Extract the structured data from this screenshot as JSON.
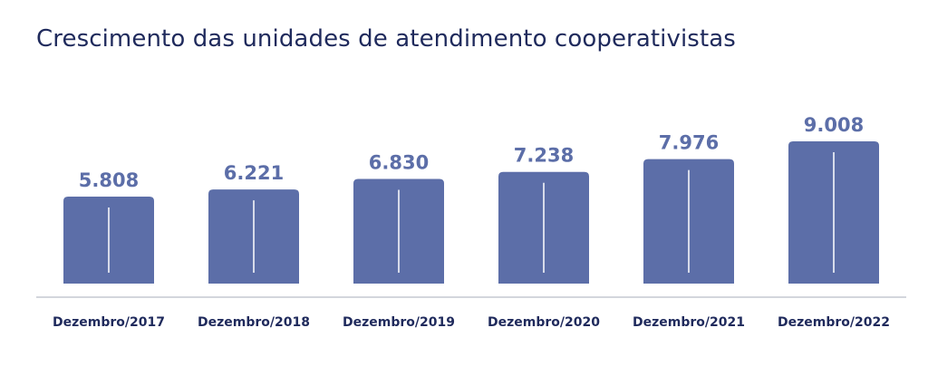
{
  "chart_data": {
    "type": "bar",
    "title": "Crescimento das unidades de atendimento cooperativistas",
    "categories": [
      "Dezembro/2017",
      "Dezembro/2018",
      "Dezembro/2019",
      "Dezembro/2020",
      "Dezembro/2021",
      "Dezembro/2022"
    ],
    "values": [
      5808,
      6221,
      6830,
      7238,
      7976,
      9008
    ],
    "value_labels": [
      "5.808",
      "6.221",
      "6.830",
      "7.238",
      "7.976",
      "9.008"
    ],
    "xlabel": "",
    "ylabel": "",
    "ylim": [
      5000,
      9200
    ],
    "grid": false,
    "legend": "none",
    "colors": {
      "bar": "#5c6ea8",
      "value_label": "#5c6ea8",
      "title": "#1f2a5c",
      "tick_label": "#1f2a5c",
      "axis": "#a7adb8"
    }
  }
}
